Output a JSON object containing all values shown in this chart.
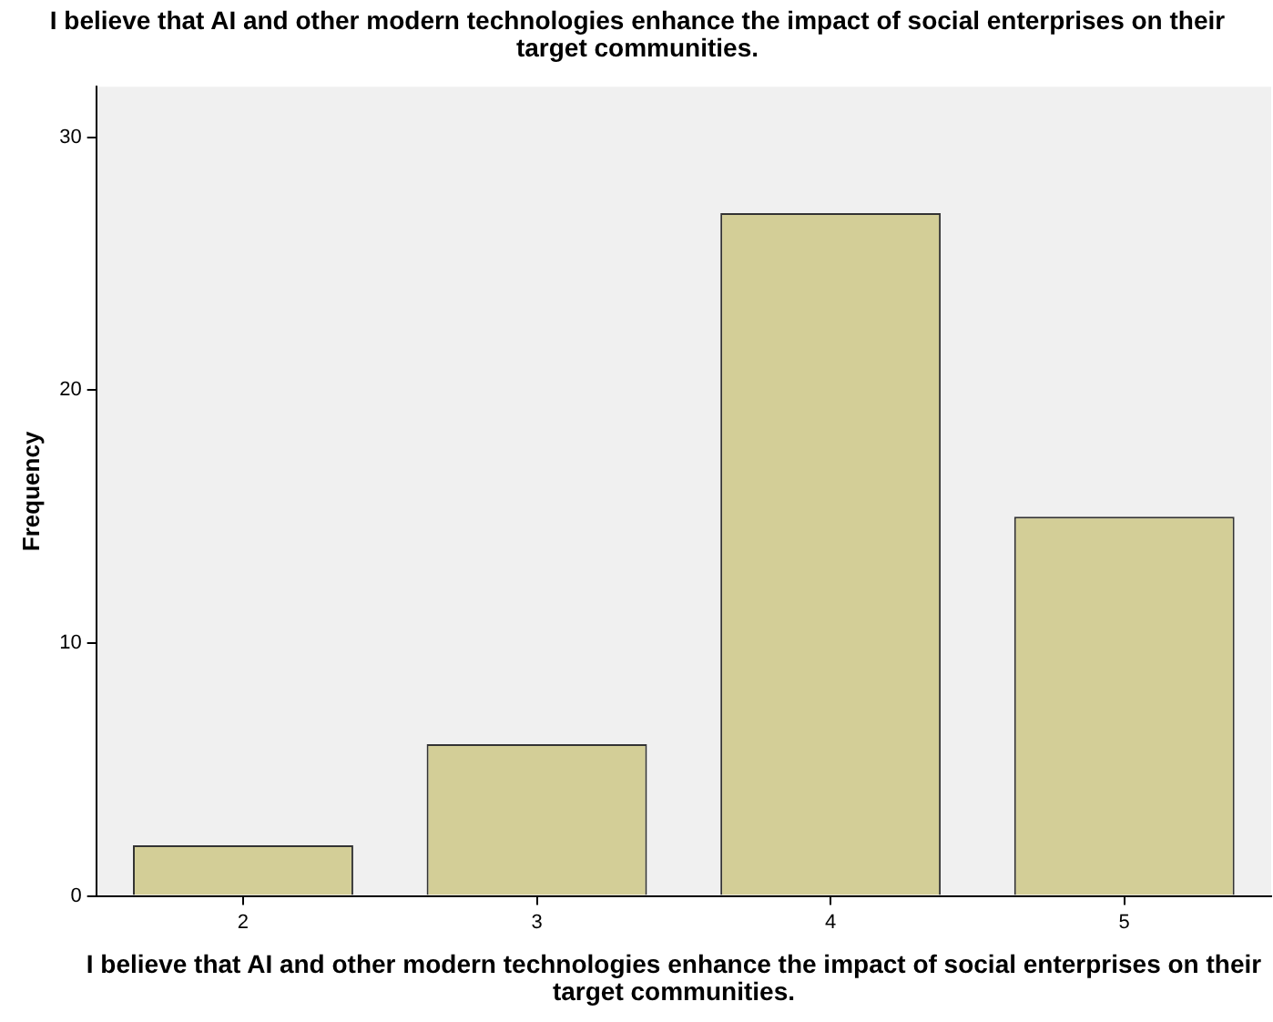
{
  "chart_data": {
    "type": "bar",
    "title": "I believe that AI and other modern technologies enhance the impact of social enterprises on their target communities.",
    "xlabel": "I believe that AI and other modern technologies enhance the impact of social enterprises on their target communities.",
    "ylabel": "Frequency",
    "categories": [
      "2",
      "3",
      "4",
      "5"
    ],
    "values": [
      2,
      6,
      27,
      15
    ],
    "color": "#d3ce97",
    "ylim": [
      0,
      32
    ],
    "yticks": [
      0,
      10,
      20,
      30
    ],
    "grid": false,
    "legend": false
  }
}
